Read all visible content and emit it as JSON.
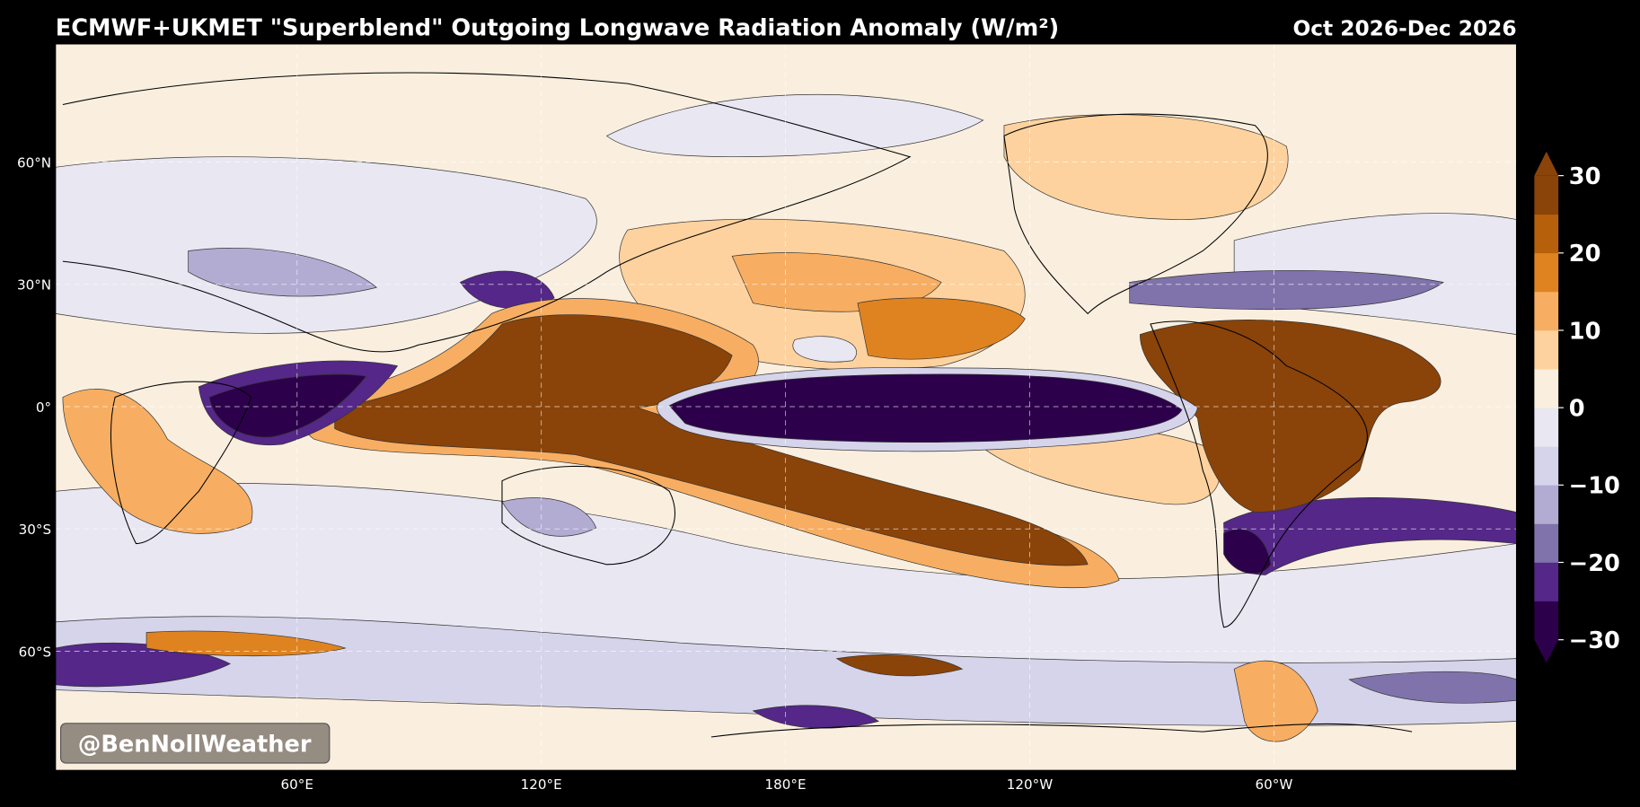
{
  "header": {
    "title": "ECMWF+UKMET \"Superblend\" Outgoing Longwave Radiation Anomaly (W/m²)",
    "period": "Oct 2026-Dec 2026"
  },
  "map": {
    "lat_labels": [
      "60°N",
      "30°N",
      "0°",
      "30°S",
      "60°S"
    ],
    "lon_labels": [
      "60°E",
      "120°E",
      "180°E",
      "120°W",
      "60°W"
    ]
  },
  "colorbar": {
    "lim": [
      -30,
      30
    ],
    "extend": "both",
    "colors": [
      "#2d004b",
      "#542788",
      "#8073ac",
      "#b2abd2",
      "#d5d4ea",
      "#e8e7f2",
      "#faefdf",
      "#fdd29e",
      "#f7ae62",
      "#df8321",
      "#b6600c",
      "#8a4309"
    ],
    "ticks": [
      {
        "value": -30,
        "label": "−30"
      },
      {
        "value": -20,
        "label": "−20"
      },
      {
        "value": -10,
        "label": "−10"
      },
      0,
      10,
      20,
      30
    ]
  },
  "watermark": "@BenNollWeather"
}
